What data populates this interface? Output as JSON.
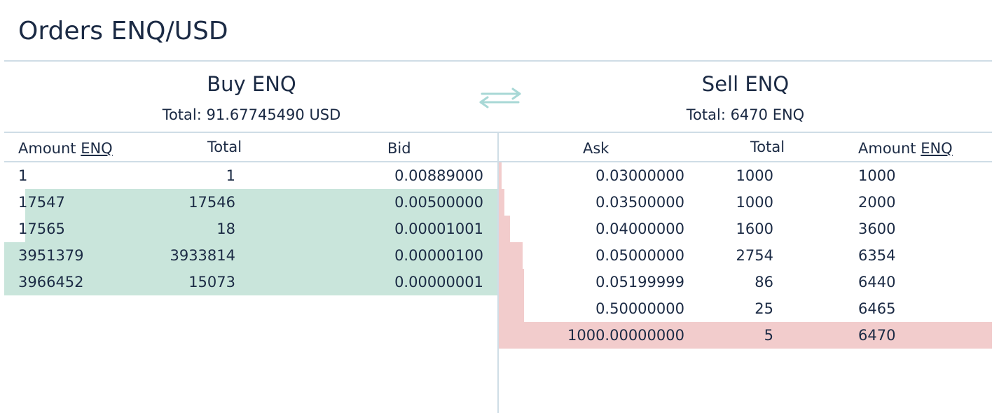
{
  "title": "Orders ENQ/USD",
  "swap_icon": "swap-arrows-icon",
  "colors": {
    "text": "#1b2a44",
    "divider": "#cfdde6",
    "buy_depth": "#c9e5db",
    "sell_depth": "#f2cccc",
    "swap_icon": "#a8d8d6"
  },
  "buy": {
    "title": "Buy ENQ",
    "total": "Total: 91.67745490 USD",
    "headers": {
      "amount": "Amount ",
      "amount_unit": "ENQ",
      "total": "Total",
      "price": "Bid"
    },
    "rows": [
      {
        "amount": "1",
        "total": "1",
        "price": "0.00889000",
        "depth": 0.0
      },
      {
        "amount": "17547",
        "total": "17546",
        "price": "0.00500000",
        "depth": 0.958
      },
      {
        "amount": "17565",
        "total": "18",
        "price": "0.00001001",
        "depth": 0.958
      },
      {
        "amount": "3951379",
        "total": "3933814",
        "price": "0.00000100",
        "depth": 1.0
      },
      {
        "amount": "3966452",
        "total": "15073",
        "price": "0.00000001",
        "depth": 1.0
      }
    ]
  },
  "sell": {
    "title": "Sell ENQ",
    "total": "Total: 6470 ENQ",
    "headers": {
      "price": "Ask",
      "total": "Total",
      "amount": "Amount ",
      "amount_unit": "ENQ"
    },
    "rows": [
      {
        "price": "0.03000000",
        "total": "1000",
        "amount": "1000",
        "depth": 0.006
      },
      {
        "price": "0.03500000",
        "total": "1000",
        "amount": "2000",
        "depth": 0.011
      },
      {
        "price": "0.04000000",
        "total": "1600",
        "amount": "3600",
        "depth": 0.023
      },
      {
        "price": "0.05000000",
        "total": "2754",
        "amount": "6354",
        "depth": 0.049
      },
      {
        "price": "0.05199999",
        "total": "86",
        "amount": "6440",
        "depth": 0.051
      },
      {
        "price": "0.50000000",
        "total": "25",
        "amount": "6465",
        "depth": 0.051
      },
      {
        "price": "1000.00000000",
        "total": "5",
        "amount": "6470",
        "depth": 1.0
      }
    ]
  }
}
